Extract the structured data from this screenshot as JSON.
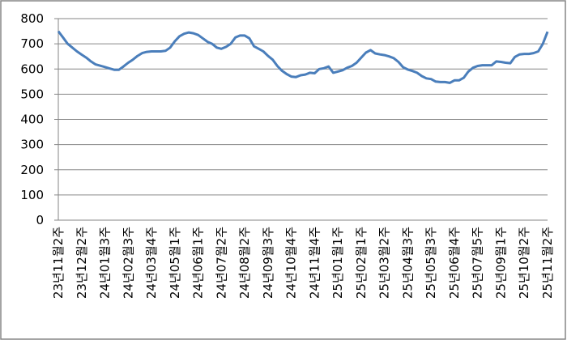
{
  "chart_data": {
    "type": "line",
    "categories": [
      "23년11월2주",
      null,
      null,
      null,
      null,
      "23년12월2주",
      null,
      null,
      null,
      null,
      "24년01월3주",
      null,
      null,
      null,
      null,
      "24년02월3주",
      null,
      null,
      null,
      null,
      "24년03월4주",
      null,
      null,
      null,
      null,
      "24년05월1주",
      null,
      null,
      null,
      null,
      "24년06월1주",
      null,
      null,
      null,
      null,
      "24년07월2주",
      null,
      null,
      null,
      null,
      "24년08월2주",
      null,
      null,
      null,
      null,
      "24년09월3주",
      null,
      null,
      null,
      null,
      "24년10월4주",
      null,
      null,
      null,
      null,
      "24년11월4주",
      null,
      null,
      null,
      null,
      "25년01월1주",
      null,
      null,
      null,
      null,
      "25년02월1주",
      null,
      null,
      null,
      null,
      "25년03월2주",
      null,
      null,
      null,
      null,
      "25년04월3주",
      null,
      null,
      null,
      null,
      "25년05월3주",
      null,
      null,
      null,
      null,
      "25년06월4주",
      null,
      null,
      null,
      null,
      "25년07월5주",
      null,
      null,
      null,
      null,
      "25년09월1주",
      null,
      null,
      null,
      null,
      "25년10월2주",
      null,
      null,
      null,
      null,
      "25년11월2주"
    ],
    "series": [
      {
        "color": "#4a7ebb",
        "values": [
          750,
          725,
          700,
          685,
          670,
          657,
          645,
          630,
          618,
          613,
          608,
          602,
          597,
          597,
          610,
          625,
          637,
          652,
          663,
          668,
          670,
          670,
          670,
          672,
          685,
          710,
          730,
          740,
          745,
          742,
          735,
          722,
          708,
          700,
          685,
          680,
          688,
          700,
          725,
          733,
          733,
          722,
          690,
          680,
          670,
          652,
          637,
          612,
          593,
          580,
          570,
          568,
          575,
          578,
          585,
          583,
          600,
          603,
          610,
          585,
          590,
          595,
          605,
          612,
          625,
          645,
          665,
          675,
          662,
          658,
          655,
          650,
          643,
          628,
          607,
          598,
          592,
          585,
          572,
          563,
          560,
          550,
          548,
          548,
          545,
          555,
          555,
          565,
          590,
          605,
          612,
          615,
          615,
          615,
          630,
          628,
          625,
          623,
          648,
          658,
          660,
          660,
          663,
          670,
          700,
          748
        ]
      }
    ],
    "ylim": [
      0,
      800
    ],
    "yticks": [
      0,
      100,
      200,
      300,
      400,
      500,
      600,
      700,
      800
    ],
    "grid": true
  }
}
